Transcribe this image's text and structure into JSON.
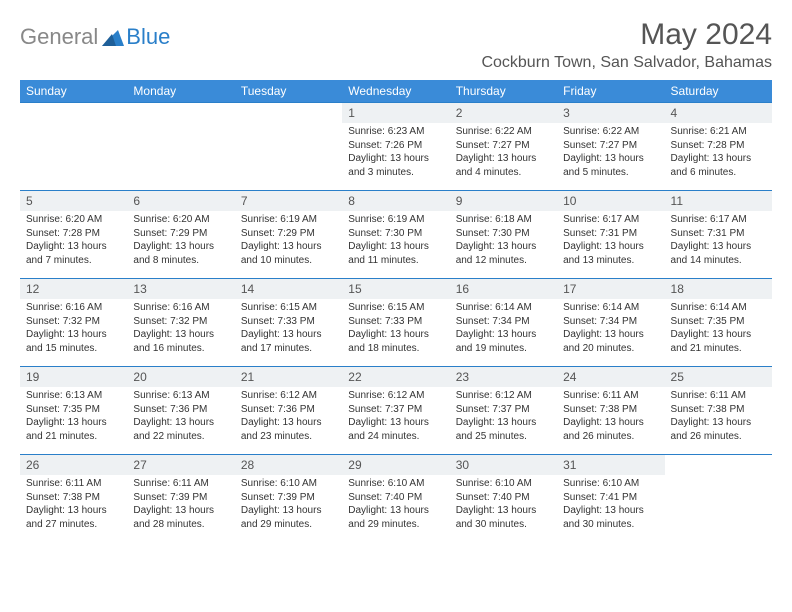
{
  "logo": {
    "text1": "General",
    "text2": "Blue"
  },
  "title": "May 2024",
  "location": "Cockburn Town, San Salvador, Bahamas",
  "colors": {
    "header_bg": "#3a8bd8",
    "header_text": "#ffffff",
    "border": "#2a7fc9",
    "daynum_bg": "#eef1f3",
    "logo_gray": "#888888",
    "logo_blue": "#2a7fc9"
  },
  "weekdays": [
    "Sunday",
    "Monday",
    "Tuesday",
    "Wednesday",
    "Thursday",
    "Friday",
    "Saturday"
  ],
  "weeks": [
    [
      {
        "empty": true
      },
      {
        "empty": true
      },
      {
        "empty": true
      },
      {
        "day": "1",
        "sunrise": "Sunrise: 6:23 AM",
        "sunset": "Sunset: 7:26 PM",
        "daylight": "Daylight: 13 hours and 3 minutes."
      },
      {
        "day": "2",
        "sunrise": "Sunrise: 6:22 AM",
        "sunset": "Sunset: 7:27 PM",
        "daylight": "Daylight: 13 hours and 4 minutes."
      },
      {
        "day": "3",
        "sunrise": "Sunrise: 6:22 AM",
        "sunset": "Sunset: 7:27 PM",
        "daylight": "Daylight: 13 hours and 5 minutes."
      },
      {
        "day": "4",
        "sunrise": "Sunrise: 6:21 AM",
        "sunset": "Sunset: 7:28 PM",
        "daylight": "Daylight: 13 hours and 6 minutes."
      }
    ],
    [
      {
        "day": "5",
        "sunrise": "Sunrise: 6:20 AM",
        "sunset": "Sunset: 7:28 PM",
        "daylight": "Daylight: 13 hours and 7 minutes."
      },
      {
        "day": "6",
        "sunrise": "Sunrise: 6:20 AM",
        "sunset": "Sunset: 7:29 PM",
        "daylight": "Daylight: 13 hours and 8 minutes."
      },
      {
        "day": "7",
        "sunrise": "Sunrise: 6:19 AM",
        "sunset": "Sunset: 7:29 PM",
        "daylight": "Daylight: 13 hours and 10 minutes."
      },
      {
        "day": "8",
        "sunrise": "Sunrise: 6:19 AM",
        "sunset": "Sunset: 7:30 PM",
        "daylight": "Daylight: 13 hours and 11 minutes."
      },
      {
        "day": "9",
        "sunrise": "Sunrise: 6:18 AM",
        "sunset": "Sunset: 7:30 PM",
        "daylight": "Daylight: 13 hours and 12 minutes."
      },
      {
        "day": "10",
        "sunrise": "Sunrise: 6:17 AM",
        "sunset": "Sunset: 7:31 PM",
        "daylight": "Daylight: 13 hours and 13 minutes."
      },
      {
        "day": "11",
        "sunrise": "Sunrise: 6:17 AM",
        "sunset": "Sunset: 7:31 PM",
        "daylight": "Daylight: 13 hours and 14 minutes."
      }
    ],
    [
      {
        "day": "12",
        "sunrise": "Sunrise: 6:16 AM",
        "sunset": "Sunset: 7:32 PM",
        "daylight": "Daylight: 13 hours and 15 minutes."
      },
      {
        "day": "13",
        "sunrise": "Sunrise: 6:16 AM",
        "sunset": "Sunset: 7:32 PM",
        "daylight": "Daylight: 13 hours and 16 minutes."
      },
      {
        "day": "14",
        "sunrise": "Sunrise: 6:15 AM",
        "sunset": "Sunset: 7:33 PM",
        "daylight": "Daylight: 13 hours and 17 minutes."
      },
      {
        "day": "15",
        "sunrise": "Sunrise: 6:15 AM",
        "sunset": "Sunset: 7:33 PM",
        "daylight": "Daylight: 13 hours and 18 minutes."
      },
      {
        "day": "16",
        "sunrise": "Sunrise: 6:14 AM",
        "sunset": "Sunset: 7:34 PM",
        "daylight": "Daylight: 13 hours and 19 minutes."
      },
      {
        "day": "17",
        "sunrise": "Sunrise: 6:14 AM",
        "sunset": "Sunset: 7:34 PM",
        "daylight": "Daylight: 13 hours and 20 minutes."
      },
      {
        "day": "18",
        "sunrise": "Sunrise: 6:14 AM",
        "sunset": "Sunset: 7:35 PM",
        "daylight": "Daylight: 13 hours and 21 minutes."
      }
    ],
    [
      {
        "day": "19",
        "sunrise": "Sunrise: 6:13 AM",
        "sunset": "Sunset: 7:35 PM",
        "daylight": "Daylight: 13 hours and 21 minutes."
      },
      {
        "day": "20",
        "sunrise": "Sunrise: 6:13 AM",
        "sunset": "Sunset: 7:36 PM",
        "daylight": "Daylight: 13 hours and 22 minutes."
      },
      {
        "day": "21",
        "sunrise": "Sunrise: 6:12 AM",
        "sunset": "Sunset: 7:36 PM",
        "daylight": "Daylight: 13 hours and 23 minutes."
      },
      {
        "day": "22",
        "sunrise": "Sunrise: 6:12 AM",
        "sunset": "Sunset: 7:37 PM",
        "daylight": "Daylight: 13 hours and 24 minutes."
      },
      {
        "day": "23",
        "sunrise": "Sunrise: 6:12 AM",
        "sunset": "Sunset: 7:37 PM",
        "daylight": "Daylight: 13 hours and 25 minutes."
      },
      {
        "day": "24",
        "sunrise": "Sunrise: 6:11 AM",
        "sunset": "Sunset: 7:38 PM",
        "daylight": "Daylight: 13 hours and 26 minutes."
      },
      {
        "day": "25",
        "sunrise": "Sunrise: 6:11 AM",
        "sunset": "Sunset: 7:38 PM",
        "daylight": "Daylight: 13 hours and 26 minutes."
      }
    ],
    [
      {
        "day": "26",
        "sunrise": "Sunrise: 6:11 AM",
        "sunset": "Sunset: 7:38 PM",
        "daylight": "Daylight: 13 hours and 27 minutes."
      },
      {
        "day": "27",
        "sunrise": "Sunrise: 6:11 AM",
        "sunset": "Sunset: 7:39 PM",
        "daylight": "Daylight: 13 hours and 28 minutes."
      },
      {
        "day": "28",
        "sunrise": "Sunrise: 6:10 AM",
        "sunset": "Sunset: 7:39 PM",
        "daylight": "Daylight: 13 hours and 29 minutes."
      },
      {
        "day": "29",
        "sunrise": "Sunrise: 6:10 AM",
        "sunset": "Sunset: 7:40 PM",
        "daylight": "Daylight: 13 hours and 29 minutes."
      },
      {
        "day": "30",
        "sunrise": "Sunrise: 6:10 AM",
        "sunset": "Sunset: 7:40 PM",
        "daylight": "Daylight: 13 hours and 30 minutes."
      },
      {
        "day": "31",
        "sunrise": "Sunrise: 6:10 AM",
        "sunset": "Sunset: 7:41 PM",
        "daylight": "Daylight: 13 hours and 30 minutes."
      },
      {
        "empty": true
      }
    ]
  ]
}
